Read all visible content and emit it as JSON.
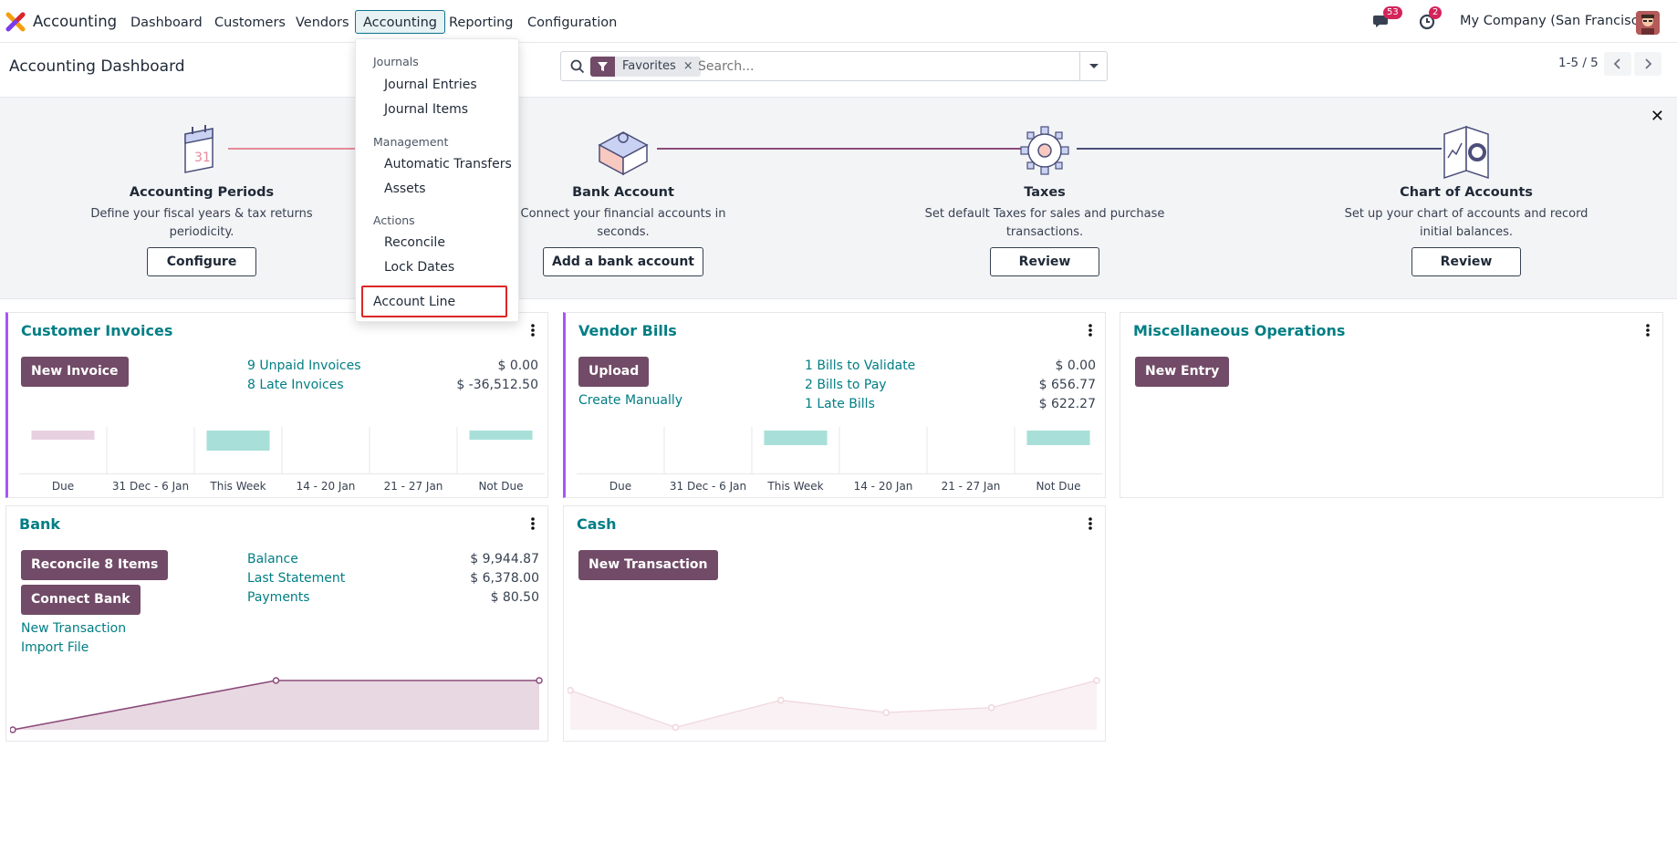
{
  "nav": {
    "app_name": "Accounting",
    "items": [
      "Dashboard",
      "Customers",
      "Vendors",
      "Accounting",
      "Reporting",
      "Configuration"
    ],
    "active": "Accounting",
    "messages_badge": "53",
    "activities_badge": "2",
    "company": "My Company (San Francisco)"
  },
  "control": {
    "title": "Accounting Dashboard",
    "facet": "Favorites",
    "search_placeholder": "Search...",
    "pager": "1-5 / 5"
  },
  "dropdown": {
    "sections": [
      {
        "header": "Journals",
        "items": [
          "Journal Entries",
          "Journal Items"
        ]
      },
      {
        "header": "Management",
        "items": [
          "Automatic Transfers",
          "Assets"
        ]
      },
      {
        "header": "Actions",
        "items": [
          "Reconcile",
          "Lock Dates"
        ]
      }
    ],
    "highlighted": "Account Line"
  },
  "onboarding": {
    "steps": [
      {
        "title": "Accounting Periods",
        "desc": [
          "Define your fiscal years & tax returns",
          "periodicity."
        ],
        "button": "Configure"
      },
      {
        "title": "Bank Account",
        "desc": [
          "Connect your financial accounts in",
          "seconds."
        ],
        "button": "Add a bank account"
      },
      {
        "title": "Taxes",
        "desc": [
          "Set default Taxes for sales and purchase",
          "transactions."
        ],
        "button": "Review"
      },
      {
        "title": "Chart of Accounts",
        "desc": [
          "Set up your chart of accounts and record",
          "initial balances."
        ],
        "button": "Review"
      }
    ]
  },
  "cards": {
    "customer_invoices": {
      "title": "Customer Invoices",
      "button": "New Invoice",
      "rows": [
        {
          "label": "9 Unpaid Invoices",
          "amount": "$ 0.00"
        },
        {
          "label": "8 Late Invoices",
          "amount": "$ -36,512.50"
        }
      ]
    },
    "vendor_bills": {
      "title": "Vendor Bills",
      "button": "Upload",
      "create_manually": "Create Manually",
      "rows": [
        {
          "label": "1 Bills to Validate",
          "amount": "$ 0.00"
        },
        {
          "label": "2 Bills to Pay",
          "amount": "$ 656.77"
        },
        {
          "label": "1 Late Bills",
          "amount": "$ 622.27"
        }
      ]
    },
    "misc": {
      "title": "Miscellaneous Operations",
      "button": "New Entry"
    },
    "bank": {
      "title": "Bank",
      "button1": "Reconcile 8 Items",
      "button2": "Connect Bank",
      "links": [
        "New Transaction",
        "Import File"
      ],
      "rows": [
        {
          "label": "Balance",
          "amount": "$ 9,944.87"
        },
        {
          "label": "Last Statement",
          "amount": "$ 6,378.00"
        },
        {
          "label": "Payments",
          "amount": "$ 80.50"
        }
      ]
    },
    "cash": {
      "title": "Cash",
      "button": "New Transaction"
    }
  },
  "chart_data": [
    {
      "type": "bar",
      "title": "Customer Invoices",
      "categories": [
        "Due",
        "31 Dec - 6 Jan",
        "This Week",
        "14 - 20 Jan",
        "21 - 27 Jan",
        "Not Due"
      ],
      "values": [
        0.25,
        0,
        0.55,
        0,
        0,
        0.25
      ],
      "colors": [
        "#e7d1e0",
        "#a8e0d9",
        "#a8e0d9",
        "#a8e0d9",
        "#a8e0d9",
        "#a8e0d9"
      ]
    },
    {
      "type": "bar",
      "title": "Vendor Bills",
      "categories": [
        "Due",
        "31 Dec - 6 Jan",
        "This Week",
        "14 - 20 Jan",
        "21 - 27 Jan",
        "Not Due"
      ],
      "values": [
        0,
        0,
        0.4,
        0,
        0,
        0.4
      ],
      "colors": [
        "#a8e0d9",
        "#a8e0d9",
        "#a8e0d9",
        "#a8e0d9",
        "#a8e0d9",
        "#a8e0d9"
      ]
    },
    {
      "type": "area",
      "title": "Bank",
      "values": [
        0,
        1,
        1
      ],
      "color": "#8b4a7a"
    },
    {
      "type": "area",
      "title": "Cash",
      "values": [
        0.8,
        0.05,
        0.6,
        0.35,
        0.45,
        1
      ],
      "color": "#f0d6dc"
    }
  ]
}
